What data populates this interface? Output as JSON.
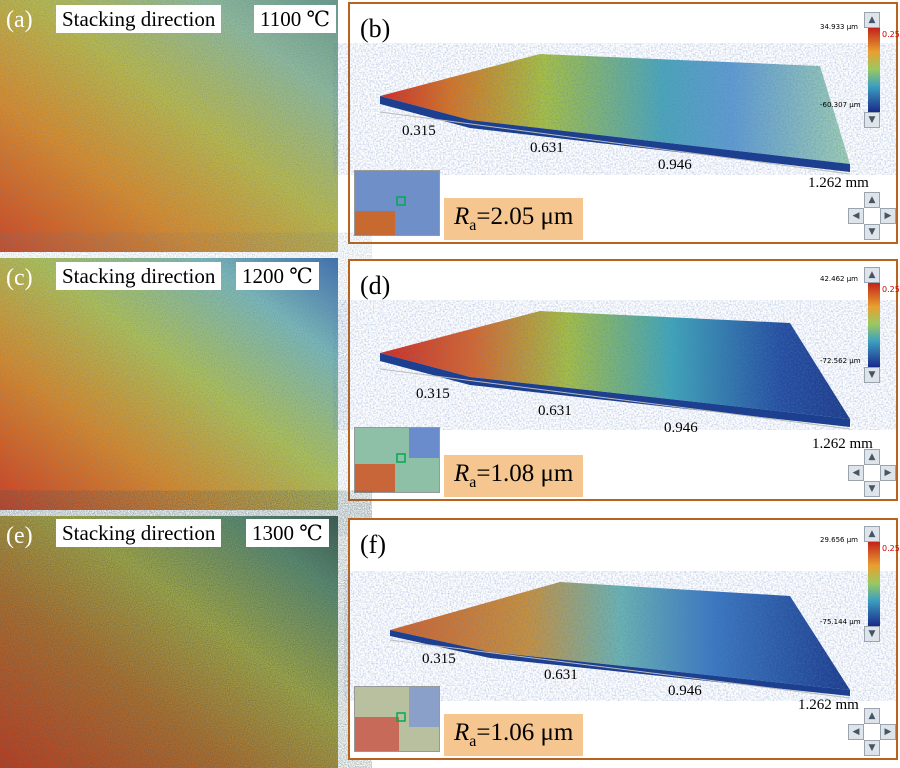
{
  "rows": [
    {
      "left": {
        "label": "(a)",
        "direction": "Stacking direction",
        "temp": "1100 ℃"
      },
      "right": {
        "label": "(b)",
        "cbar_max": "34.933 μm",
        "cbar_mid": "0.25",
        "cbar_min": "-60.307 μm",
        "ticks": [
          "0.315",
          "0.631",
          "0.946",
          "1.262 mm"
        ],
        "ra_symbol": "R",
        "ra_sub": "a",
        "ra_value": "=2.05 μm"
      }
    },
    {
      "left": {
        "label": "(c)",
        "direction": "Stacking direction",
        "temp": "1200 ℃"
      },
      "right": {
        "label": "(d)",
        "cbar_max": "42.462 μm",
        "cbar_mid": "0.25",
        "cbar_min": "-72.562 μm",
        "ticks": [
          "0.315",
          "0.631",
          "0.946",
          "1.262 mm"
        ],
        "ra_symbol": "R",
        "ra_sub": "a",
        "ra_value": "=1.08 μm"
      }
    },
    {
      "left": {
        "label": "(e)",
        "direction": "Stacking direction",
        "temp": "1300 ℃"
      },
      "right": {
        "label": "(f)",
        "cbar_max": "29.656 μm",
        "cbar_mid": "0.25",
        "cbar_min": "-75.144 μm",
        "ticks": [
          "0.315",
          "0.631",
          "0.946",
          "1.262 mm"
        ],
        "ra_symbol": "R",
        "ra_sub": "a",
        "ra_value": "=1.06 μm"
      }
    }
  ],
  "colors": {
    "panel_border": "#b8621b",
    "ra_box": "#f5c690"
  }
}
